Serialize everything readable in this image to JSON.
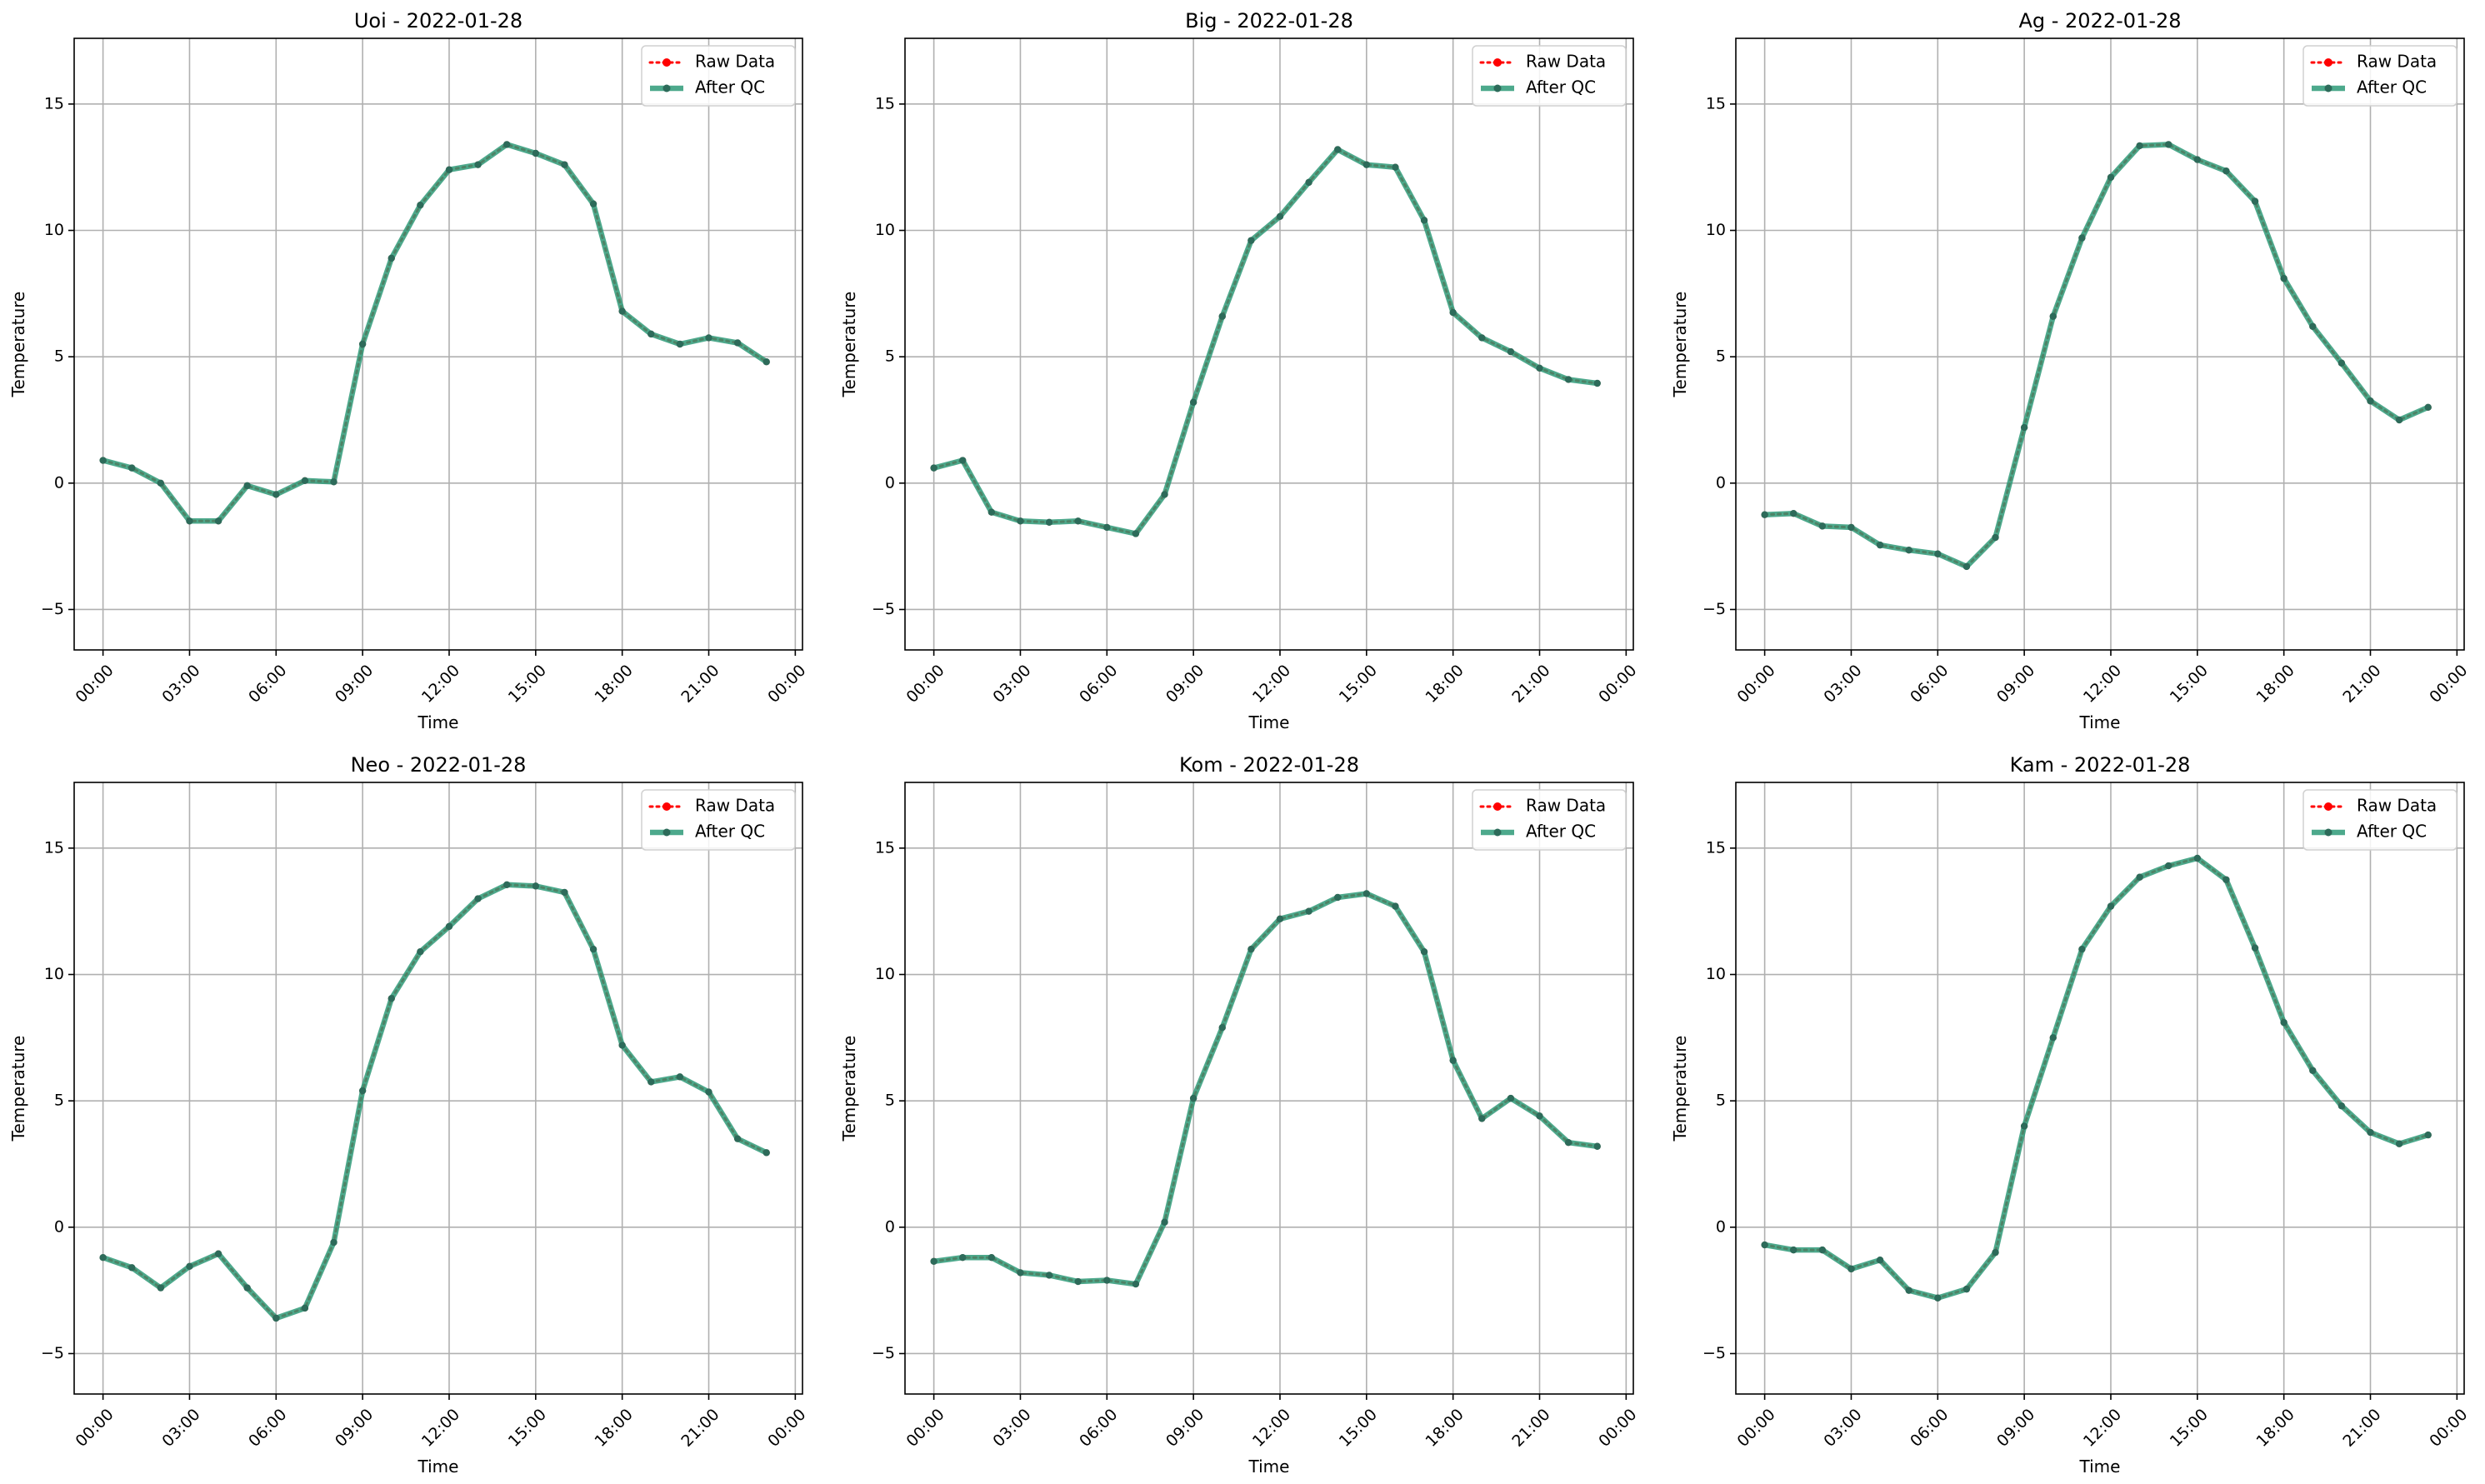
{
  "legend": {
    "raw": "Raw Data",
    "qc": "After QC",
    "raw_color": "#ff0000",
    "qc_color": "#2e9a78",
    "qc_marker_color": "#2d6b5a",
    "location": "upper-right"
  },
  "chart_data": [
    {
      "type": "line",
      "title": "Uoi - 2022-01-28",
      "xlabel": "Time",
      "ylabel": "Temperature",
      "xlim": [
        "2022-01-27 23:00",
        "2022-01-29 00:15"
      ],
      "ylim": [
        -6.6,
        17.6
      ],
      "grid": true,
      "x_ticks": [
        "00:00",
        "03:00",
        "06:00",
        "09:00",
        "12:00",
        "15:00",
        "18:00",
        "21:00",
        "00:00"
      ],
      "y_ticks": [
        -5,
        0,
        5,
        10,
        15
      ],
      "x_hours": [
        0,
        1,
        2,
        3,
        4,
        5,
        6,
        7,
        8,
        9,
        10,
        11,
        12,
        13,
        14,
        15,
        16,
        17,
        18,
        19,
        20,
        21,
        22,
        23
      ],
      "series": [
        {
          "name": "Raw Data",
          "values": [
            0.9,
            0.6,
            0.0,
            -1.5,
            -1.5,
            -0.1,
            -0.45,
            0.1,
            0.05,
            5.5,
            8.9,
            11.0,
            12.4,
            12.6,
            13.4,
            13.05,
            12.6,
            11.05,
            6.8,
            5.9,
            5.5,
            5.75,
            5.55,
            4.8
          ]
        },
        {
          "name": "After QC",
          "values": [
            0.9,
            0.6,
            0.0,
            -1.5,
            -1.5,
            -0.1,
            -0.45,
            0.1,
            0.05,
            5.5,
            8.9,
            11.0,
            12.4,
            12.6,
            13.4,
            13.05,
            12.6,
            11.05,
            6.8,
            5.9,
            5.5,
            5.75,
            5.55,
            4.8
          ]
        }
      ]
    },
    {
      "type": "line",
      "title": "Big - 2022-01-28",
      "xlabel": "Time",
      "ylabel": "Temperature",
      "xlim": [
        "2022-01-27 23:00",
        "2022-01-29 00:15"
      ],
      "ylim": [
        -6.6,
        17.6
      ],
      "grid": true,
      "x_ticks": [
        "00:00",
        "03:00",
        "06:00",
        "09:00",
        "12:00",
        "15:00",
        "18:00",
        "21:00",
        "00:00"
      ],
      "y_ticks": [
        -5,
        0,
        5,
        10,
        15
      ],
      "x_hours": [
        0,
        1,
        2,
        3,
        4,
        5,
        6,
        7,
        8,
        9,
        10,
        11,
        12,
        13,
        14,
        15,
        16,
        17,
        18,
        19,
        20,
        21,
        22,
        23
      ],
      "series": [
        {
          "name": "Raw Data",
          "values": [
            0.6,
            0.9,
            -1.15,
            -1.5,
            -1.55,
            -1.5,
            -1.75,
            -2.0,
            -0.45,
            3.2,
            6.6,
            9.6,
            10.55,
            11.9,
            13.2,
            12.6,
            12.5,
            10.4,
            6.75,
            5.75,
            5.2,
            4.55,
            4.1,
            3.95
          ]
        },
        {
          "name": "After QC",
          "values": [
            0.6,
            0.9,
            -1.15,
            -1.5,
            -1.55,
            -1.5,
            -1.75,
            -2.0,
            -0.45,
            3.2,
            6.6,
            9.6,
            10.55,
            11.9,
            13.2,
            12.6,
            12.5,
            10.4,
            6.75,
            5.75,
            5.2,
            4.55,
            4.1,
            3.95
          ]
        }
      ]
    },
    {
      "type": "line",
      "title": "Ag - 2022-01-28",
      "xlabel": "Time",
      "ylabel": "Temperature",
      "xlim": [
        "2022-01-27 23:00",
        "2022-01-29 00:15"
      ],
      "ylim": [
        -6.6,
        17.6
      ],
      "grid": true,
      "x_ticks": [
        "00:00",
        "03:00",
        "06:00",
        "09:00",
        "12:00",
        "15:00",
        "18:00",
        "21:00",
        "00:00"
      ],
      "y_ticks": [
        -5,
        0,
        5,
        10,
        15
      ],
      "x_hours": [
        0,
        1,
        2,
        3,
        4,
        5,
        6,
        7,
        8,
        9,
        10,
        11,
        12,
        13,
        14,
        15,
        16,
        17,
        18,
        19,
        20,
        21,
        22,
        23
      ],
      "series": [
        {
          "name": "Raw Data",
          "values": [
            -1.25,
            -1.2,
            -1.7,
            -1.75,
            -2.45,
            -2.65,
            -2.8,
            -3.3,
            -2.15,
            2.2,
            6.6,
            9.7,
            12.1,
            13.35,
            13.4,
            12.8,
            12.35,
            11.15,
            8.1,
            6.2,
            4.75,
            3.25,
            2.5,
            3.0
          ]
        },
        {
          "name": "After QC",
          "values": [
            -1.25,
            -1.2,
            -1.7,
            -1.75,
            -2.45,
            -2.65,
            -2.8,
            -3.3,
            -2.15,
            2.2,
            6.6,
            9.7,
            12.1,
            13.35,
            13.4,
            12.8,
            12.35,
            11.15,
            8.1,
            6.2,
            4.75,
            3.25,
            2.5,
            3.0
          ]
        }
      ]
    },
    {
      "type": "line",
      "title": "Neo - 2022-01-28",
      "xlabel": "Time",
      "ylabel": "Temperature",
      "xlim": [
        "2022-01-27 23:00",
        "2022-01-29 00:15"
      ],
      "ylim": [
        -6.6,
        17.6
      ],
      "grid": true,
      "x_ticks": [
        "00:00",
        "03:00",
        "06:00",
        "09:00",
        "12:00",
        "15:00",
        "18:00",
        "21:00",
        "00:00"
      ],
      "y_ticks": [
        -5,
        0,
        5,
        10,
        15
      ],
      "x_hours": [
        0,
        1,
        2,
        3,
        4,
        5,
        6,
        7,
        8,
        9,
        10,
        11,
        12,
        13,
        14,
        15,
        16,
        17,
        18,
        19,
        20,
        21,
        22,
        23
      ],
      "series": [
        {
          "name": "Raw Data",
          "values": [
            -1.2,
            -1.6,
            -2.4,
            -1.55,
            -1.05,
            -2.4,
            -3.6,
            -3.2,
            -0.6,
            5.4,
            9.05,
            10.9,
            11.9,
            13.0,
            13.55,
            13.5,
            13.25,
            11.0,
            7.2,
            5.75,
            5.95,
            5.35,
            3.5,
            2.95
          ]
        },
        {
          "name": "After QC",
          "values": [
            -1.2,
            -1.6,
            -2.4,
            -1.55,
            -1.05,
            -2.4,
            -3.6,
            -3.2,
            -0.6,
            5.4,
            9.05,
            10.9,
            11.9,
            13.0,
            13.55,
            13.5,
            13.25,
            11.0,
            7.2,
            5.75,
            5.95,
            5.35,
            3.5,
            2.95
          ]
        }
      ]
    },
    {
      "type": "line",
      "title": "Kom - 2022-01-28",
      "xlabel": "Time",
      "ylabel": "Temperature",
      "xlim": [
        "2022-01-27 23:00",
        "2022-01-29 00:15"
      ],
      "ylim": [
        -6.6,
        17.6
      ],
      "grid": true,
      "x_ticks": [
        "00:00",
        "03:00",
        "06:00",
        "09:00",
        "12:00",
        "15:00",
        "18:00",
        "21:00",
        "00:00"
      ],
      "y_ticks": [
        -5,
        0,
        5,
        10,
        15
      ],
      "x_hours": [
        0,
        1,
        2,
        3,
        4,
        5,
        6,
        7,
        8,
        9,
        10,
        11,
        12,
        13,
        14,
        15,
        16,
        17,
        18,
        19,
        20,
        21,
        22,
        23
      ],
      "series": [
        {
          "name": "Raw Data",
          "values": [
            -1.35,
            -1.2,
            -1.2,
            -1.8,
            -1.9,
            -2.15,
            -2.1,
            -2.25,
            0.2,
            5.1,
            7.9,
            11.0,
            12.2,
            12.5,
            13.05,
            13.2,
            12.7,
            10.9,
            6.6,
            4.3,
            5.1,
            4.4,
            3.35,
            3.2
          ]
        },
        {
          "name": "After QC",
          "values": [
            -1.35,
            -1.2,
            -1.2,
            -1.8,
            -1.9,
            -2.15,
            -2.1,
            -2.25,
            0.2,
            5.1,
            7.9,
            11.0,
            12.2,
            12.5,
            13.05,
            13.2,
            12.7,
            10.9,
            6.6,
            4.3,
            5.1,
            4.4,
            3.35,
            3.2
          ]
        }
      ]
    },
    {
      "type": "line",
      "title": "Kam - 2022-01-28",
      "xlabel": "Time",
      "ylabel": "Temperature",
      "xlim": [
        "2022-01-27 23:00",
        "2022-01-29 00:15"
      ],
      "ylim": [
        -6.6,
        17.6
      ],
      "grid": true,
      "x_ticks": [
        "00:00",
        "03:00",
        "06:00",
        "09:00",
        "12:00",
        "15:00",
        "18:00",
        "21:00",
        "00:00"
      ],
      "y_ticks": [
        -5,
        0,
        5,
        10,
        15
      ],
      "x_hours": [
        0,
        1,
        2,
        3,
        4,
        5,
        6,
        7,
        8,
        9,
        10,
        11,
        12,
        13,
        14,
        15,
        16,
        17,
        18,
        19,
        20,
        21,
        22,
        23
      ],
      "series": [
        {
          "name": "Raw Data",
          "values": [
            -0.7,
            -0.9,
            -0.9,
            -1.65,
            -1.3,
            -2.5,
            -2.8,
            -2.45,
            -1.0,
            4.0,
            7.5,
            11.0,
            12.7,
            13.85,
            14.3,
            14.6,
            13.75,
            11.05,
            8.1,
            6.2,
            4.8,
            3.75,
            3.3,
            3.65
          ]
        },
        {
          "name": "After QC",
          "values": [
            -0.7,
            -0.9,
            -0.9,
            -1.65,
            -1.3,
            -2.5,
            -2.8,
            -2.45,
            -1.0,
            4.0,
            7.5,
            11.0,
            12.7,
            13.85,
            14.3,
            14.6,
            13.75,
            11.05,
            8.1,
            6.2,
            4.8,
            3.75,
            3.3,
            3.65
          ]
        }
      ]
    }
  ]
}
